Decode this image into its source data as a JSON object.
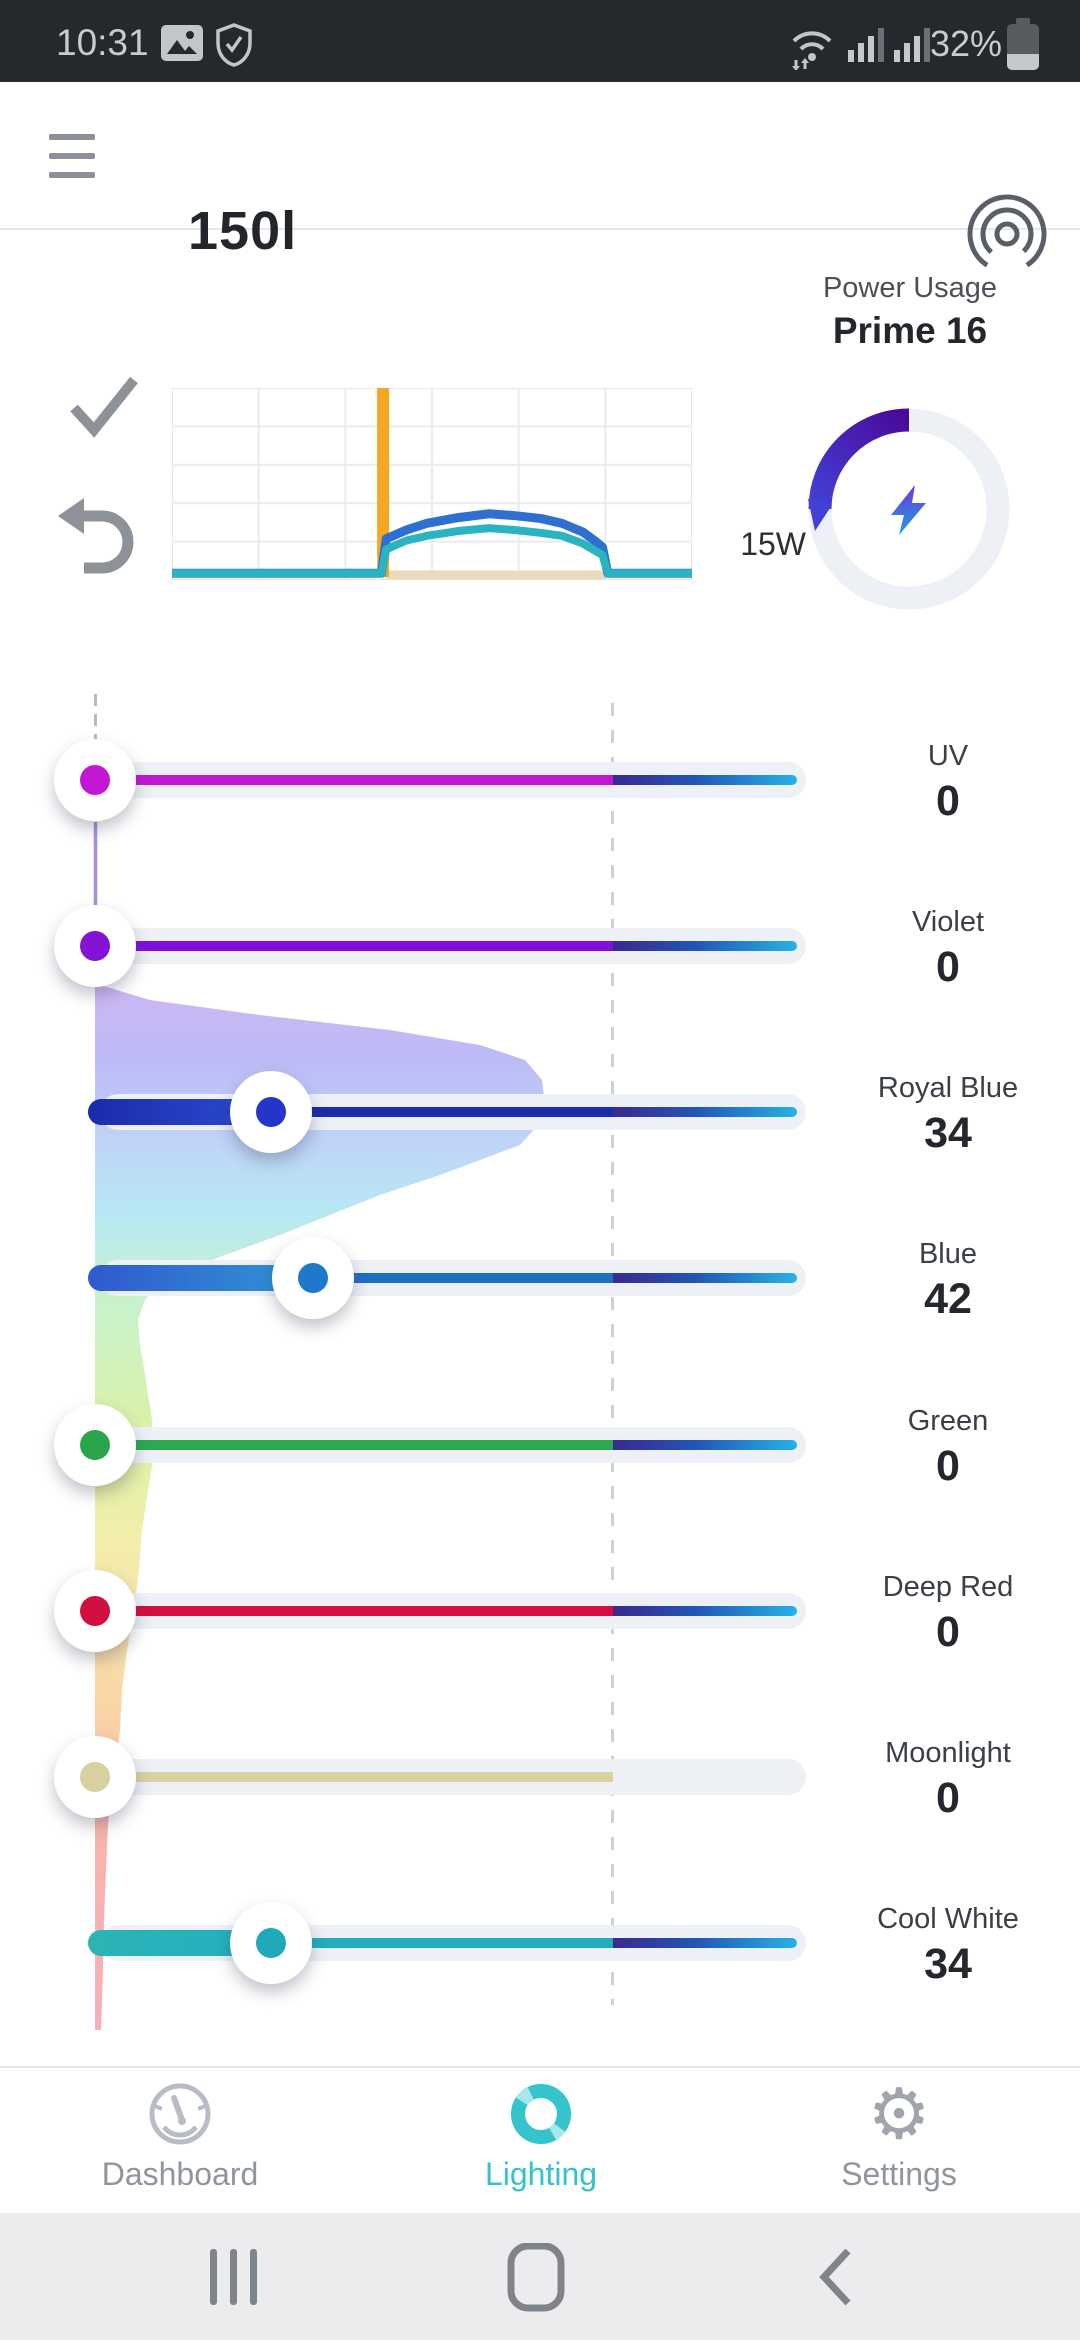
{
  "status_bar": {
    "time": "10:31",
    "battery_percent": "32%",
    "left_icons": [
      "image-icon",
      "shield-check-icon"
    ],
    "right_icons": [
      "wifi-icon",
      "signal-icon",
      "signal-icon",
      "battery-icon"
    ]
  },
  "header": {
    "title": "150l"
  },
  "power": {
    "label": "Power Usage",
    "device": "Prime 16",
    "watts": "15W",
    "gauge": {
      "percent": 25,
      "direction": "counterclockwise",
      "track_color": "#edf0f5",
      "arc_gradient": [
        "#4a0a99",
        "#4240d6"
      ],
      "bolt_gradient": [
        "#7a2ad8",
        "#18a7e2"
      ]
    }
  },
  "chart_data": {
    "type": "line",
    "title": "daily lighting schedule preview",
    "grid": {
      "columns": 6,
      "rows": 5,
      "color": "#e9ebee"
    },
    "series": [
      {
        "name": "blue-intensity",
        "color": "#2e6fd0",
        "width": 9,
        "points_pct": [
          [
            0,
            96.5
          ],
          [
            40.3,
            96.5
          ],
          [
            41.2,
            78.5
          ],
          [
            45,
            74
          ],
          [
            49,
            70.5
          ],
          [
            55,
            67.5
          ],
          [
            61,
            65.5
          ],
          [
            66,
            66.5
          ],
          [
            71,
            68
          ],
          [
            75,
            70.5
          ],
          [
            79,
            75
          ],
          [
            81.5,
            80
          ],
          [
            82.8,
            83
          ],
          [
            83.8,
            96.5
          ],
          [
            100,
            96.5
          ]
        ]
      },
      {
        "name": "teal-intensity",
        "color": "#2ab3c0",
        "width": 8,
        "points_pct": [
          [
            0,
            96.5
          ],
          [
            40.3,
            96.5
          ],
          [
            41.2,
            84
          ],
          [
            45,
            79.5
          ],
          [
            49,
            77
          ],
          [
            55,
            74.5
          ],
          [
            61,
            73
          ],
          [
            66,
            74
          ],
          [
            71,
            75.5
          ],
          [
            75,
            77
          ],
          [
            79,
            81
          ],
          [
            81.5,
            85
          ],
          [
            82.8,
            87
          ],
          [
            83.8,
            96.5
          ],
          [
            100,
            96.5
          ]
        ]
      }
    ],
    "markers": {
      "now_line": {
        "x_pct": 40.6,
        "color": "#f5a623"
      },
      "base_segment": {
        "x1_pct": 41,
        "x2_pct": 83.5,
        "color": "#e9dbbc"
      }
    }
  },
  "sliders": {
    "full_scale_value": 100,
    "channels": [
      {
        "name": "UV",
        "value": 0,
        "line": "#c217d3",
        "dot": "#c217d3",
        "hd": true
      },
      {
        "name": "Violet",
        "value": 0,
        "line": "#7e10d9",
        "dot": "#8413d6",
        "hd": true
      },
      {
        "name": "Royal Blue",
        "value": 34,
        "line": "#1b2da8",
        "dot": "#2336c8",
        "bar": [
          "#1b2bab",
          "#2e52d8"
        ],
        "hd": true
      },
      {
        "name": "Blue",
        "value": 42,
        "line": "#1e6fc4",
        "dot": "#1f78c9",
        "bar": [
          "#3059cf",
          "#2f9fd6"
        ],
        "hd": true
      },
      {
        "name": "Green",
        "value": 0,
        "line": "#2fa94f",
        "dot": "#2ba54b",
        "hd": true
      },
      {
        "name": "Deep Red",
        "value": 0,
        "line": "#d50f3f",
        "dot": "#d21040",
        "hd": true
      },
      {
        "name": "Moonlight",
        "value": 0,
        "line": "#d8d2a2",
        "dot": "#d7d1a1",
        "hd": false
      },
      {
        "name": "Cool White",
        "value": 34,
        "line": "#23aebd",
        "dot": "#20aab9",
        "bar": [
          "#2ab4b4",
          "#24adc4"
        ],
        "hd": true
      }
    ]
  },
  "spectrum": {
    "points": [
      [
        985,
        100
      ],
      [
        1000,
        150
      ],
      [
        1015,
        260
      ],
      [
        1030,
        390
      ],
      [
        1045,
        480
      ],
      [
        1060,
        525
      ],
      [
        1080,
        542
      ],
      [
        1105,
        545
      ],
      [
        1125,
        538
      ],
      [
        1145,
        520
      ],
      [
        1160,
        480
      ],
      [
        1175,
        440
      ],
      [
        1195,
        380
      ],
      [
        1215,
        330
      ],
      [
        1235,
        280
      ],
      [
        1255,
        225
      ],
      [
        1270,
        185
      ],
      [
        1285,
        158
      ],
      [
        1300,
        145
      ],
      [
        1320,
        138
      ],
      [
        1345,
        140
      ],
      [
        1380,
        146
      ],
      [
        1420,
        152
      ],
      [
        1455,
        154
      ],
      [
        1490,
        148
      ],
      [
        1530,
        142
      ],
      [
        1570,
        139
      ],
      [
        1610,
        134
      ],
      [
        1650,
        127
      ],
      [
        1690,
        122
      ],
      [
        1730,
        120
      ],
      [
        1765,
        116
      ],
      [
        1790,
        111
      ],
      [
        1825,
        108
      ],
      [
        1870,
        106
      ],
      [
        1920,
        104
      ],
      [
        1970,
        103
      ],
      [
        2030,
        101
      ]
    ],
    "stops": [
      [
        0,
        "#ccb5f2"
      ],
      [
        0.07,
        "#bab8f6"
      ],
      [
        0.15,
        "#bdd2f7"
      ],
      [
        0.22,
        "#b5e8f3"
      ],
      [
        0.3,
        "#c6f1cc"
      ],
      [
        0.42,
        "#d8f2a6"
      ],
      [
        0.53,
        "#f3eda8"
      ],
      [
        0.63,
        "#f8dfa8"
      ],
      [
        0.72,
        "#f9cda2"
      ],
      [
        0.8,
        "#f8b2a8"
      ],
      [
        1,
        "#f8abb7"
      ]
    ]
  },
  "nav": {
    "items": [
      {
        "label": "Dashboard",
        "icon": "gauge-icon",
        "active": false
      },
      {
        "label": "Lighting",
        "icon": "donut-icon",
        "active": true
      },
      {
        "label": "Settings",
        "icon": "gear-icon",
        "active": false
      }
    ],
    "active_color": "#35c3cb",
    "inactive_color": "#8f959d"
  },
  "android_nav": {
    "icons": [
      "recents-icon",
      "home-icon",
      "back-icon"
    ]
  }
}
